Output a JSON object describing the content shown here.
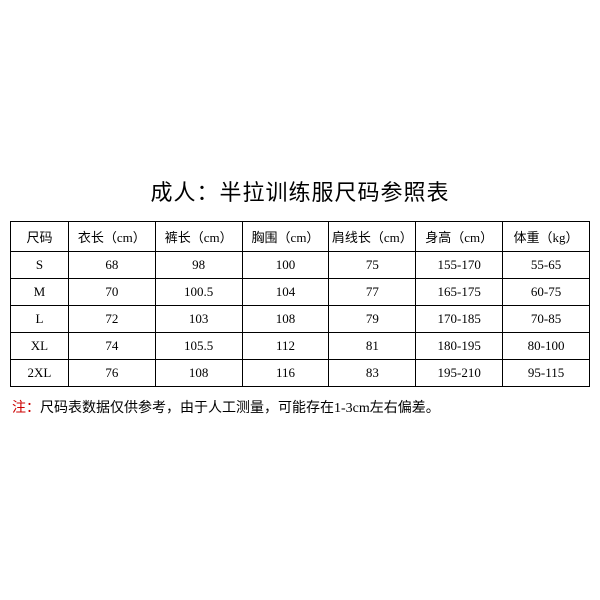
{
  "title": "成人：半拉训练服尺码参照表",
  "columns": [
    "尺码",
    "衣长（cm）",
    "裤长（cm）",
    "胸围（cm）",
    "肩线长（cm）",
    "身高（cm）",
    "体重（kg）"
  ],
  "rows": [
    [
      "S",
      "68",
      "98",
      "100",
      "75",
      "155-170",
      "55-65"
    ],
    [
      "M",
      "70",
      "100.5",
      "104",
      "77",
      "165-175",
      "60-75"
    ],
    [
      "L",
      "72",
      "103",
      "108",
      "79",
      "170-185",
      "70-85"
    ],
    [
      "XL",
      "74",
      "105.5",
      "112",
      "81",
      "180-195",
      "80-100"
    ],
    [
      "2XL",
      "76",
      "108",
      "116",
      "83",
      "195-210",
      "95-115"
    ]
  ],
  "note_label": "注：",
  "note_text": "尺码表数据仅供参考，由于人工测量，可能存在1-3cm左右偏差。",
  "styling": {
    "background_color": "#ffffff",
    "text_color": "#000000",
    "border_color": "#000000",
    "note_label_color": "#cc0000",
    "title_fontsize": 22,
    "cell_fontsize": 13,
    "note_fontsize": 14,
    "column_widths": [
      "10%",
      "15%",
      "15%",
      "15%",
      "15%",
      "15%",
      "15%"
    ]
  }
}
